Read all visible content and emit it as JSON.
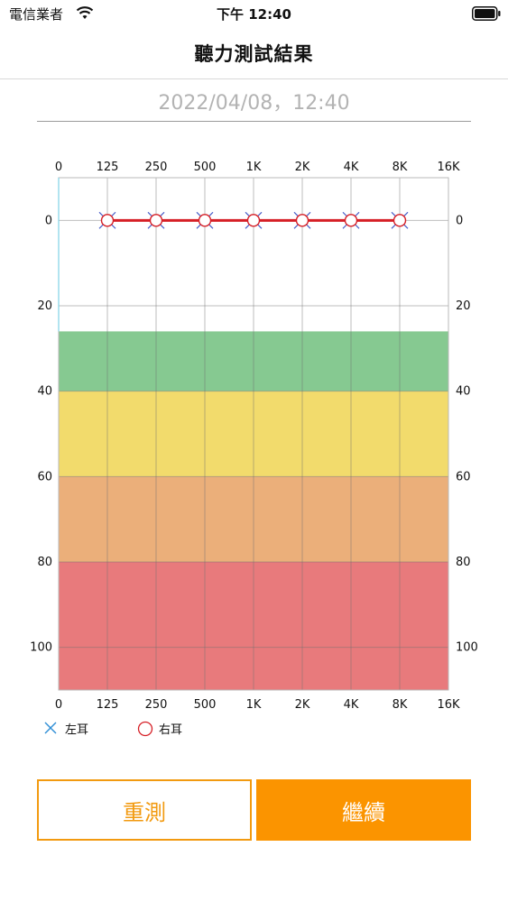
{
  "status": {
    "carrier": "電信業者",
    "time": "下午 12:40"
  },
  "header": {
    "title": "聽力測試結果"
  },
  "test": {
    "datetime": "2022/04/08，12:40"
  },
  "chart_data": {
    "type": "line",
    "title": "",
    "x_tick_labels": [
      "0",
      "125",
      "250",
      "500",
      "1K",
      "2K",
      "4K",
      "8K",
      "16K"
    ],
    "y_tick_labels": [
      "0",
      "20",
      "40",
      "60",
      "80",
      "100"
    ],
    "ylim": [
      -10,
      110
    ],
    "y_inverted": true,
    "grid": true,
    "bands": [
      {
        "from": 26,
        "to": 40,
        "color": "#86c991"
      },
      {
        "from": 40,
        "to": 60,
        "color": "#f2db6c"
      },
      {
        "from": 60,
        "to": 80,
        "color": "#ebaf7a"
      },
      {
        "from": 80,
        "to": 110,
        "color": "#e87a7c"
      }
    ],
    "series": [
      {
        "name": "左耳",
        "marker": "x",
        "color": "#4a5fc9",
        "x": [
          "125",
          "250",
          "500",
          "1K",
          "2K",
          "4K",
          "8K"
        ],
        "values": [
          0,
          0,
          0,
          0,
          0,
          0,
          0
        ]
      },
      {
        "name": "右耳",
        "marker": "circle",
        "color": "#d61f26",
        "x": [
          "125",
          "250",
          "500",
          "1K",
          "2K",
          "4K",
          "8K"
        ],
        "values": [
          0,
          0,
          0,
          0,
          0,
          0,
          0
        ]
      }
    ]
  },
  "legend": {
    "left_label": "左耳",
    "right_label": "右耳"
  },
  "buttons": {
    "retest": "重測",
    "continue": "繼續"
  },
  "colors": {
    "accent": "#fb9400",
    "right_ear": "#d61f26",
    "left_ear": "#4a5fc9"
  }
}
